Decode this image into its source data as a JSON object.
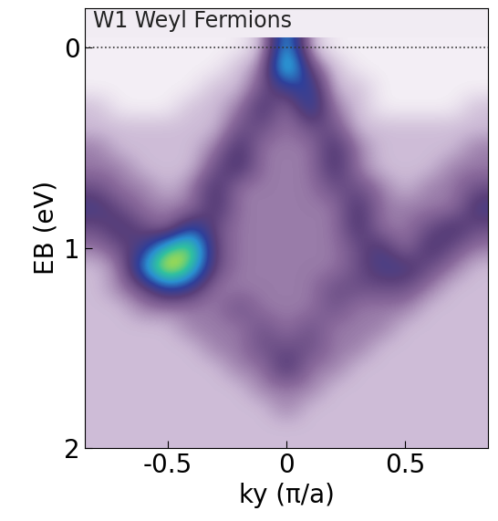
{
  "chart_data": {
    "type": "heatmap",
    "title": "W1 Weyl Fermions",
    "x_label": "ky (π/a)",
    "y_label": "EB (eV)",
    "x": [
      -0.8,
      -0.7,
      -0.6,
      -0.5,
      -0.4,
      -0.3,
      -0.2,
      -0.1,
      0,
      0.1,
      0.2,
      0.3,
      0.4,
      0.5,
      0.6,
      0.7,
      0.8
    ],
    "y": [
      0,
      0.1,
      0.2,
      0.3,
      0.4,
      0.5,
      0.6,
      0.7,
      0.8,
      0.9,
      1.0,
      1.1,
      1.2,
      1.3,
      1.4,
      1.5,
      1.6,
      1.7,
      1.8,
      1.9,
      2.0
    ],
    "cells": [
      [
        0,
        0,
        0,
        0,
        0,
        0,
        0,
        1,
        7,
        1,
        0,
        0,
        0,
        0,
        0,
        0,
        0
      ],
      [
        0,
        0,
        0,
        0,
        0,
        0,
        1,
        2,
        8,
        3,
        1,
        0,
        0,
        0,
        0,
        0,
        0
      ],
      [
        0,
        0,
        0,
        0,
        0,
        1,
        1,
        3,
        4,
        5,
        1,
        1,
        0,
        0,
        0,
        0,
        0
      ],
      [
        1,
        0,
        0,
        0,
        1,
        1,
        2,
        4,
        2,
        5,
        2,
        1,
        0,
        0,
        0,
        0,
        1
      ],
      [
        1,
        1,
        1,
        1,
        1,
        1,
        3,
        3,
        2,
        3,
        3,
        1,
        1,
        1,
        1,
        1,
        1
      ],
      [
        2,
        1,
        1,
        1,
        1,
        2,
        4,
        2,
        2,
        2,
        4,
        2,
        1,
        1,
        1,
        1,
        2
      ],
      [
        2,
        2,
        1,
        1,
        1,
        3,
        4,
        2,
        2,
        2,
        4,
        2,
        1,
        1,
        1,
        2,
        2
      ],
      [
        3,
        2,
        2,
        1,
        2,
        4,
        2,
        2,
        2,
        2,
        3,
        3,
        2,
        1,
        2,
        2,
        3
      ],
      [
        4,
        3,
        2,
        2,
        2,
        4,
        2,
        2,
        2,
        2,
        2,
        4,
        2,
        2,
        2,
        2,
        4
      ],
      [
        3,
        4,
        3,
        2,
        5,
        3,
        2,
        2,
        2,
        2,
        2,
        4,
        2,
        2,
        3,
        4,
        3
      ],
      [
        2,
        3,
        4,
        7,
        8,
        3,
        2,
        2,
        2,
        2,
        2,
        3,
        4,
        2,
        4,
        3,
        2
      ],
      [
        1,
        2,
        6,
        9,
        7,
        3,
        2,
        2,
        2,
        2,
        2,
        3,
        4,
        4,
        3,
        2,
        1
      ],
      [
        1,
        2,
        3,
        5,
        4,
        2,
        2,
        2,
        2,
        2,
        3,
        3,
        3,
        3,
        2,
        1,
        1
      ],
      [
        1,
        1,
        2,
        2,
        2,
        2,
        3,
        2,
        2,
        2,
        3,
        2,
        2,
        2,
        1,
        1,
        1
      ],
      [
        1,
        1,
        1,
        1,
        2,
        2,
        2,
        3,
        2,
        3,
        2,
        2,
        2,
        1,
        1,
        1,
        1
      ],
      [
        1,
        1,
        1,
        1,
        1,
        2,
        2,
        3,
        3,
        3,
        2,
        2,
        1,
        1,
        1,
        1,
        1
      ],
      [
        1,
        1,
        1,
        1,
        1,
        1,
        2,
        2,
        4,
        2,
        2,
        1,
        1,
        1,
        1,
        1,
        1
      ],
      [
        1,
        1,
        1,
        1,
        1,
        1,
        1,
        2,
        2,
        2,
        1,
        1,
        1,
        1,
        1,
        1,
        1
      ],
      [
        1,
        1,
        1,
        1,
        1,
        1,
        1,
        1,
        2,
        1,
        1,
        1,
        1,
        1,
        1,
        1,
        1
      ],
      [
        1,
        1,
        1,
        1,
        1,
        1,
        1,
        1,
        1,
        1,
        1,
        1,
        1,
        1,
        1,
        1,
        1
      ],
      [
        1,
        1,
        1,
        1,
        1,
        1,
        1,
        1,
        1,
        1,
        1,
        1,
        1,
        1,
        1,
        1,
        1
      ]
    ],
    "hline": 0,
    "xlim": [
      -0.85,
      0.85
    ],
    "xticks": [
      -0.5,
      0,
      0.5
    ],
    "ylim": [
      2,
      -0.2
    ],
    "yticks": [
      0,
      1,
      2
    ]
  }
}
